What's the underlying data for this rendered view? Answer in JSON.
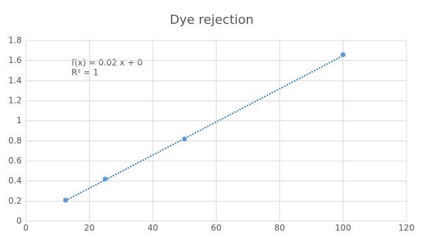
{
  "chart_data": {
    "type": "scatter",
    "title": "Dye rejection",
    "x": [
      12.5,
      25,
      50,
      100
    ],
    "series": [
      {
        "name": "Dye rejection",
        "color": "#5b9bd5",
        "values": [
          0.21,
          0.42,
          0.82,
          1.66
        ]
      }
    ],
    "trendline": {
      "color": "#2e75b6",
      "x": [
        12.5,
        100
      ],
      "values": [
        0.205,
        1.65
      ]
    },
    "annotations": [
      "f(x) = 0.02 x + 0",
      "R² = 1"
    ],
    "xlim": [
      0,
      120
    ],
    "xticks": [
      0,
      20,
      40,
      60,
      80,
      100,
      120
    ],
    "ylim": [
      0,
      1.8
    ],
    "yticks": [
      0,
      0.2,
      0.4,
      0.6,
      0.8,
      1,
      1.2,
      1.4,
      1.6,
      1.8
    ],
    "grid": true
  }
}
